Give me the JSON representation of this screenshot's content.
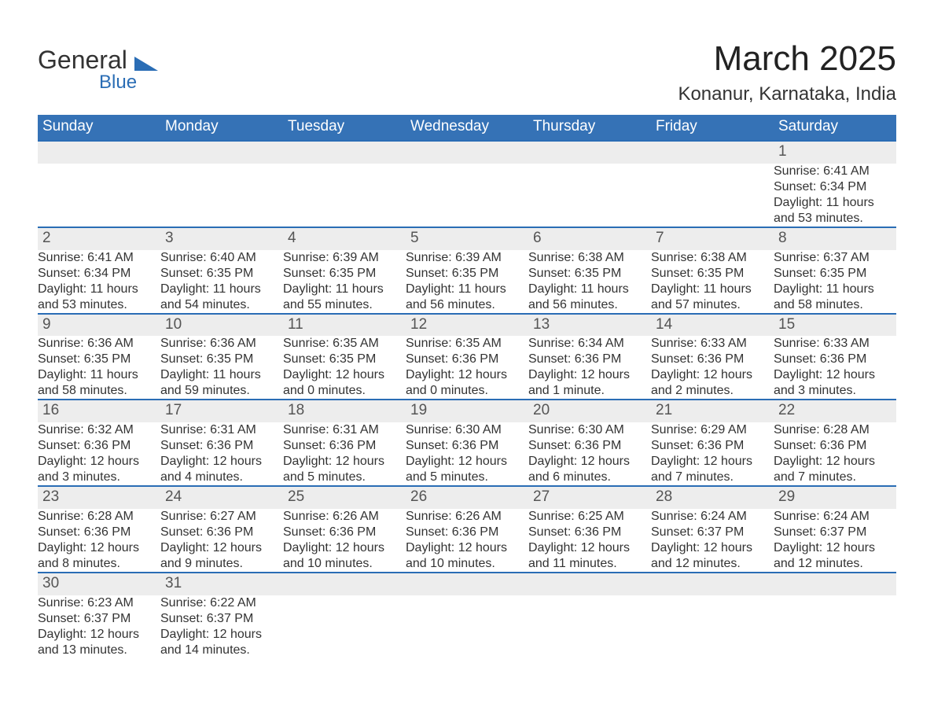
{
  "brand": {
    "name": "General",
    "sub": "Blue",
    "logo_color": "#2a6db5",
    "text_color": "#333333"
  },
  "title": {
    "month": "March 2025",
    "location": "Konanur, Karnataka, India"
  },
  "style": {
    "header_bg": "#3572b6",
    "header_fg": "#ffffff",
    "daynum_bg": "#ededed",
    "border_color": "#2a6db5",
    "body_bg": "#ffffff",
    "text_color": "#333333",
    "month_fontsize": 44,
    "location_fontsize": 24,
    "header_fontsize": 19,
    "daynum_fontsize": 19,
    "info_fontsize": 16
  },
  "weekdays": [
    "Sunday",
    "Monday",
    "Tuesday",
    "Wednesday",
    "Thursday",
    "Friday",
    "Saturday"
  ],
  "weeks": [
    [
      null,
      null,
      null,
      null,
      null,
      null,
      {
        "n": "1",
        "sr": "Sunrise: 6:41 AM",
        "ss": "Sunset: 6:34 PM",
        "d1": "Daylight: 11 hours",
        "d2": "and 53 minutes."
      }
    ],
    [
      {
        "n": "2",
        "sr": "Sunrise: 6:41 AM",
        "ss": "Sunset: 6:34 PM",
        "d1": "Daylight: 11 hours",
        "d2": "and 53 minutes."
      },
      {
        "n": "3",
        "sr": "Sunrise: 6:40 AM",
        "ss": "Sunset: 6:35 PM",
        "d1": "Daylight: 11 hours",
        "d2": "and 54 minutes."
      },
      {
        "n": "4",
        "sr": "Sunrise: 6:39 AM",
        "ss": "Sunset: 6:35 PM",
        "d1": "Daylight: 11 hours",
        "d2": "and 55 minutes."
      },
      {
        "n": "5",
        "sr": "Sunrise: 6:39 AM",
        "ss": "Sunset: 6:35 PM",
        "d1": "Daylight: 11 hours",
        "d2": "and 56 minutes."
      },
      {
        "n": "6",
        "sr": "Sunrise: 6:38 AM",
        "ss": "Sunset: 6:35 PM",
        "d1": "Daylight: 11 hours",
        "d2": "and 56 minutes."
      },
      {
        "n": "7",
        "sr": "Sunrise: 6:38 AM",
        "ss": "Sunset: 6:35 PM",
        "d1": "Daylight: 11 hours",
        "d2": "and 57 minutes."
      },
      {
        "n": "8",
        "sr": "Sunrise: 6:37 AM",
        "ss": "Sunset: 6:35 PM",
        "d1": "Daylight: 11 hours",
        "d2": "and 58 minutes."
      }
    ],
    [
      {
        "n": "9",
        "sr": "Sunrise: 6:36 AM",
        "ss": "Sunset: 6:35 PM",
        "d1": "Daylight: 11 hours",
        "d2": "and 58 minutes."
      },
      {
        "n": "10",
        "sr": "Sunrise: 6:36 AM",
        "ss": "Sunset: 6:35 PM",
        "d1": "Daylight: 11 hours",
        "d2": "and 59 minutes."
      },
      {
        "n": "11",
        "sr": "Sunrise: 6:35 AM",
        "ss": "Sunset: 6:35 PM",
        "d1": "Daylight: 12 hours",
        "d2": "and 0 minutes."
      },
      {
        "n": "12",
        "sr": "Sunrise: 6:35 AM",
        "ss": "Sunset: 6:36 PM",
        "d1": "Daylight: 12 hours",
        "d2": "and 0 minutes."
      },
      {
        "n": "13",
        "sr": "Sunrise: 6:34 AM",
        "ss": "Sunset: 6:36 PM",
        "d1": "Daylight: 12 hours",
        "d2": "and 1 minute."
      },
      {
        "n": "14",
        "sr": "Sunrise: 6:33 AM",
        "ss": "Sunset: 6:36 PM",
        "d1": "Daylight: 12 hours",
        "d2": "and 2 minutes."
      },
      {
        "n": "15",
        "sr": "Sunrise: 6:33 AM",
        "ss": "Sunset: 6:36 PM",
        "d1": "Daylight: 12 hours",
        "d2": "and 3 minutes."
      }
    ],
    [
      {
        "n": "16",
        "sr": "Sunrise: 6:32 AM",
        "ss": "Sunset: 6:36 PM",
        "d1": "Daylight: 12 hours",
        "d2": "and 3 minutes."
      },
      {
        "n": "17",
        "sr": "Sunrise: 6:31 AM",
        "ss": "Sunset: 6:36 PM",
        "d1": "Daylight: 12 hours",
        "d2": "and 4 minutes."
      },
      {
        "n": "18",
        "sr": "Sunrise: 6:31 AM",
        "ss": "Sunset: 6:36 PM",
        "d1": "Daylight: 12 hours",
        "d2": "and 5 minutes."
      },
      {
        "n": "19",
        "sr": "Sunrise: 6:30 AM",
        "ss": "Sunset: 6:36 PM",
        "d1": "Daylight: 12 hours",
        "d2": "and 5 minutes."
      },
      {
        "n": "20",
        "sr": "Sunrise: 6:30 AM",
        "ss": "Sunset: 6:36 PM",
        "d1": "Daylight: 12 hours",
        "d2": "and 6 minutes."
      },
      {
        "n": "21",
        "sr": "Sunrise: 6:29 AM",
        "ss": "Sunset: 6:36 PM",
        "d1": "Daylight: 12 hours",
        "d2": "and 7 minutes."
      },
      {
        "n": "22",
        "sr": "Sunrise: 6:28 AM",
        "ss": "Sunset: 6:36 PM",
        "d1": "Daylight: 12 hours",
        "d2": "and 7 minutes."
      }
    ],
    [
      {
        "n": "23",
        "sr": "Sunrise: 6:28 AM",
        "ss": "Sunset: 6:36 PM",
        "d1": "Daylight: 12 hours",
        "d2": "and 8 minutes."
      },
      {
        "n": "24",
        "sr": "Sunrise: 6:27 AM",
        "ss": "Sunset: 6:36 PM",
        "d1": "Daylight: 12 hours",
        "d2": "and 9 minutes."
      },
      {
        "n": "25",
        "sr": "Sunrise: 6:26 AM",
        "ss": "Sunset: 6:36 PM",
        "d1": "Daylight: 12 hours",
        "d2": "and 10 minutes."
      },
      {
        "n": "26",
        "sr": "Sunrise: 6:26 AM",
        "ss": "Sunset: 6:36 PM",
        "d1": "Daylight: 12 hours",
        "d2": "and 10 minutes."
      },
      {
        "n": "27",
        "sr": "Sunrise: 6:25 AM",
        "ss": "Sunset: 6:36 PM",
        "d1": "Daylight: 12 hours",
        "d2": "and 11 minutes."
      },
      {
        "n": "28",
        "sr": "Sunrise: 6:24 AM",
        "ss": "Sunset: 6:37 PM",
        "d1": "Daylight: 12 hours",
        "d2": "and 12 minutes."
      },
      {
        "n": "29",
        "sr": "Sunrise: 6:24 AM",
        "ss": "Sunset: 6:37 PM",
        "d1": "Daylight: 12 hours",
        "d2": "and 12 minutes."
      }
    ],
    [
      {
        "n": "30",
        "sr": "Sunrise: 6:23 AM",
        "ss": "Sunset: 6:37 PM",
        "d1": "Daylight: 12 hours",
        "d2": "and 13 minutes."
      },
      {
        "n": "31",
        "sr": "Sunrise: 6:22 AM",
        "ss": "Sunset: 6:37 PM",
        "d1": "Daylight: 12 hours",
        "d2": "and 14 minutes."
      },
      null,
      null,
      null,
      null,
      null
    ]
  ]
}
